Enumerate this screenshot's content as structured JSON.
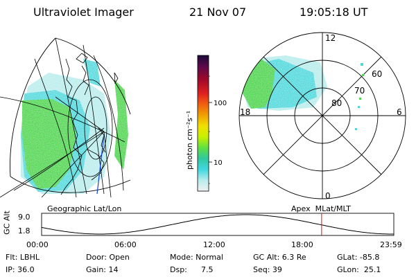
{
  "header": {
    "instrument": "Ultraviolet Imager",
    "date": "21 Nov 07",
    "time": "19:05:18 UT"
  },
  "colors": {
    "aurora_green": "#4cd44c",
    "aurora_cyan": "#4ed8dc",
    "aurora_light": "#b8ecec",
    "noon_marker": "#e01010"
  },
  "colorbar": {
    "label": "photon cm⁻²s⁻¹",
    "ticks": [
      "100",
      "10"
    ],
    "scale": "log",
    "stops": [
      "#1a0a3a",
      "#5a0a4a",
      "#a00a2a",
      "#e02020",
      "#f06010",
      "#f0a000",
      "#f0e000",
      "#c8f000",
      "#60e040",
      "#30c8a0",
      "#40d8e0",
      "#b8ecec",
      "#f0f0f0"
    ]
  },
  "left_map": {
    "label": "Geographic Lat/Lon"
  },
  "right_dial": {
    "label": "Apex  MLat/MLT",
    "mlt_labels": {
      "top": "12",
      "right": "6",
      "bottom": "0",
      "left": "18"
    },
    "lat_labels": [
      "60",
      "70",
      "80"
    ]
  },
  "altitude_plot": {
    "ylabel": "GC Alt",
    "yticks": [
      "9.0",
      "1.8"
    ],
    "xticks": [
      "00:00",
      "06:00",
      "12:00",
      "18:00",
      "23:59"
    ],
    "ylim": [
      1.8,
      9.0
    ],
    "current_time_fraction": 0.795
  },
  "info": {
    "filter": "Flt: LBHL",
    "ip": "IP: 36.0",
    "door": "Door: Open",
    "gain": "Gain: 14",
    "mode": "Mode: Normal",
    "dsp_label": "Dsp:",
    "dsp_value": "7.5",
    "gc_alt": "GC Alt: 6.3 Re",
    "seq": "Seq: 39",
    "glat": "GLat: -85.8",
    "glon": "GLon:  25.1"
  }
}
